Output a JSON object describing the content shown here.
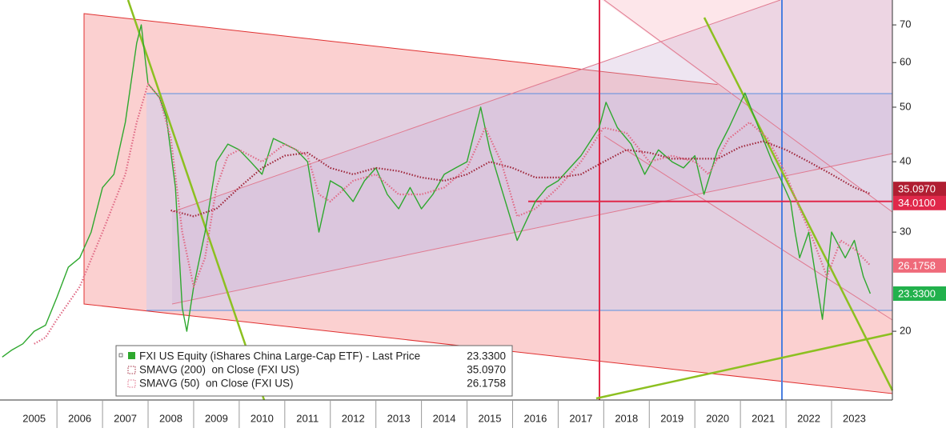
{
  "chart_data": {
    "type": "line",
    "log_scale": true,
    "xlim": [
      2004.75,
      2024.3
    ],
    "ylim": [
      15.1,
      77.5
    ],
    "xticks": [
      {
        "value": 2005.5,
        "label": "2005"
      },
      {
        "value": 2006.5,
        "label": "2006"
      },
      {
        "value": 2007.5,
        "label": "2007"
      },
      {
        "value": 2008.5,
        "label": "2008"
      },
      {
        "value": 2009.5,
        "label": "2009"
      },
      {
        "value": 2010.5,
        "label": "2010"
      },
      {
        "value": 2011.5,
        "label": "2011"
      },
      {
        "value": 2012.5,
        "label": "2012"
      },
      {
        "value": 2013.5,
        "label": "2013"
      },
      {
        "value": 2014.5,
        "label": "2014"
      },
      {
        "value": 2015.5,
        "label": "2015"
      },
      {
        "value": 2016.5,
        "label": "2016"
      },
      {
        "value": 2017.5,
        "label": "2017"
      },
      {
        "value": 2018.5,
        "label": "2018"
      },
      {
        "value": 2019.5,
        "label": "2019"
      },
      {
        "value": 2020.5,
        "label": "2020"
      },
      {
        "value": 2021.5,
        "label": "2021"
      },
      {
        "value": 2022.5,
        "label": "2022"
      },
      {
        "value": 2023.5,
        "label": "2023"
      }
    ],
    "yticks": [
      20,
      30,
      40,
      50,
      60,
      70
    ],
    "series": [
      {
        "name": "FXI US Equity (iShares China Large-Cap ETF) - Last Price",
        "color": "#2ea82e",
        "style": "solid",
        "last_label": "23.3300",
        "label_color": "#22b14c",
        "x": [
          2004.8,
          2005.0,
          2005.25,
          2005.5,
          2005.75,
          2006.0,
          2006.25,
          2006.5,
          2006.75,
          2007.0,
          2007.25,
          2007.5,
          2007.75,
          2007.85,
          2008.0,
          2008.25,
          2008.4,
          2008.6,
          2008.75,
          2008.85,
          2009.0,
          2009.25,
          2009.5,
          2009.75,
          2010.0,
          2010.25,
          2010.5,
          2010.75,
          2011.0,
          2011.25,
          2011.5,
          2011.75,
          2012.0,
          2012.25,
          2012.5,
          2012.75,
          2013.0,
          2013.25,
          2013.5,
          2013.75,
          2014.0,
          2014.25,
          2014.5,
          2014.75,
          2015.0,
          2015.3,
          2015.5,
          2015.75,
          2016.1,
          2016.5,
          2016.75,
          2017.0,
          2017.5,
          2017.9,
          2018.05,
          2018.3,
          2018.6,
          2018.9,
          2019.2,
          2019.5,
          2019.75,
          2020.0,
          2020.2,
          2020.5,
          2020.75,
          2021.1,
          2021.4,
          2021.7,
          2021.9,
          2022.1,
          2022.2,
          2022.3,
          2022.5,
          2022.8,
          2023.0,
          2023.3,
          2023.5,
          2023.7,
          2023.85
        ],
        "values": [
          18,
          18.5,
          19,
          20,
          20.5,
          23,
          26,
          27,
          30,
          36,
          38,
          47,
          65,
          70,
          55,
          52,
          48,
          36,
          22,
          20,
          24,
          30,
          40,
          43,
          42,
          40,
          38,
          44,
          43,
          42,
          40,
          30,
          37,
          36,
          34,
          37,
          39,
          35,
          33,
          36,
          33,
          35,
          38,
          39,
          40,
          50,
          42,
          36,
          29,
          34,
          36,
          37,
          41,
          46,
          51,
          46,
          43,
          38,
          42,
          40,
          39,
          41,
          35,
          42,
          46,
          53,
          46,
          40,
          37,
          34,
          30,
          27,
          30,
          21,
          30,
          27,
          29,
          25,
          23.33
        ]
      },
      {
        "name": "SMAVG (200)  on Close (FXI US)",
        "color": "#a0283c",
        "style": "dotted",
        "last_label": "35.0970",
        "label_color": "#b01e32",
        "x": [
          2008.5,
          2009.0,
          2009.5,
          2010.0,
          2010.5,
          2011.0,
          2011.5,
          2012.0,
          2012.5,
          2013.0,
          2013.5,
          2014.0,
          2014.5,
          2015.0,
          2015.5,
          2016.0,
          2016.5,
          2017.0,
          2017.5,
          2018.0,
          2018.5,
          2019.0,
          2019.5,
          2020.0,
          2020.5,
          2021.0,
          2021.5,
          2022.0,
          2022.5,
          2023.0,
          2023.5,
          2023.85
        ],
        "values": [
          32.8,
          32,
          33,
          36,
          39,
          41,
          41.5,
          39,
          38,
          39,
          38.5,
          37.5,
          37,
          38,
          40,
          39,
          37.5,
          37.5,
          38,
          40,
          42,
          41.5,
          40.5,
          40.5,
          40.5,
          42.5,
          43.5,
          42,
          40,
          38,
          36,
          35.097
        ]
      },
      {
        "name": "SMAVG (50)  on Close (FXI US)",
        "color": "#e06b86",
        "style": "dotted",
        "last_label": "26.1758",
        "label_color": "#ef6a7a",
        "x": [
          2005.5,
          2005.75,
          2006.0,
          2006.5,
          2007.0,
          2007.5,
          2007.75,
          2008.0,
          2008.25,
          2008.5,
          2008.75,
          2009.0,
          2009.25,
          2009.5,
          2009.75,
          2010.0,
          2010.5,
          2011.0,
          2011.5,
          2011.75,
          2012.0,
          2012.5,
          2013.0,
          2013.5,
          2014.0,
          2014.5,
          2015.0,
          2015.4,
          2015.75,
          2016.1,
          2016.5,
          2017.0,
          2017.5,
          2018.0,
          2018.5,
          2019.0,
          2019.5,
          2020.0,
          2020.3,
          2020.75,
          2021.2,
          2021.6,
          2022.0,
          2022.3,
          2022.6,
          2022.9,
          2023.2,
          2023.5,
          2023.85
        ],
        "values": [
          19,
          19.5,
          21,
          24,
          30,
          38,
          47,
          55,
          52,
          44,
          30,
          24,
          27,
          36,
          41,
          42,
          40,
          43,
          41,
          35,
          34,
          37,
          38,
          35,
          35,
          36,
          39,
          46,
          40,
          32,
          33,
          36,
          40,
          46,
          45,
          40,
          41,
          40,
          38,
          44,
          47,
          44,
          38,
          33,
          29,
          25,
          29,
          28,
          26.1758
        ]
      }
    ],
    "hlines": [
      {
        "value": 34.01,
        "label": "34.0100",
        "color": "#e0284a"
      }
    ]
  }
}
